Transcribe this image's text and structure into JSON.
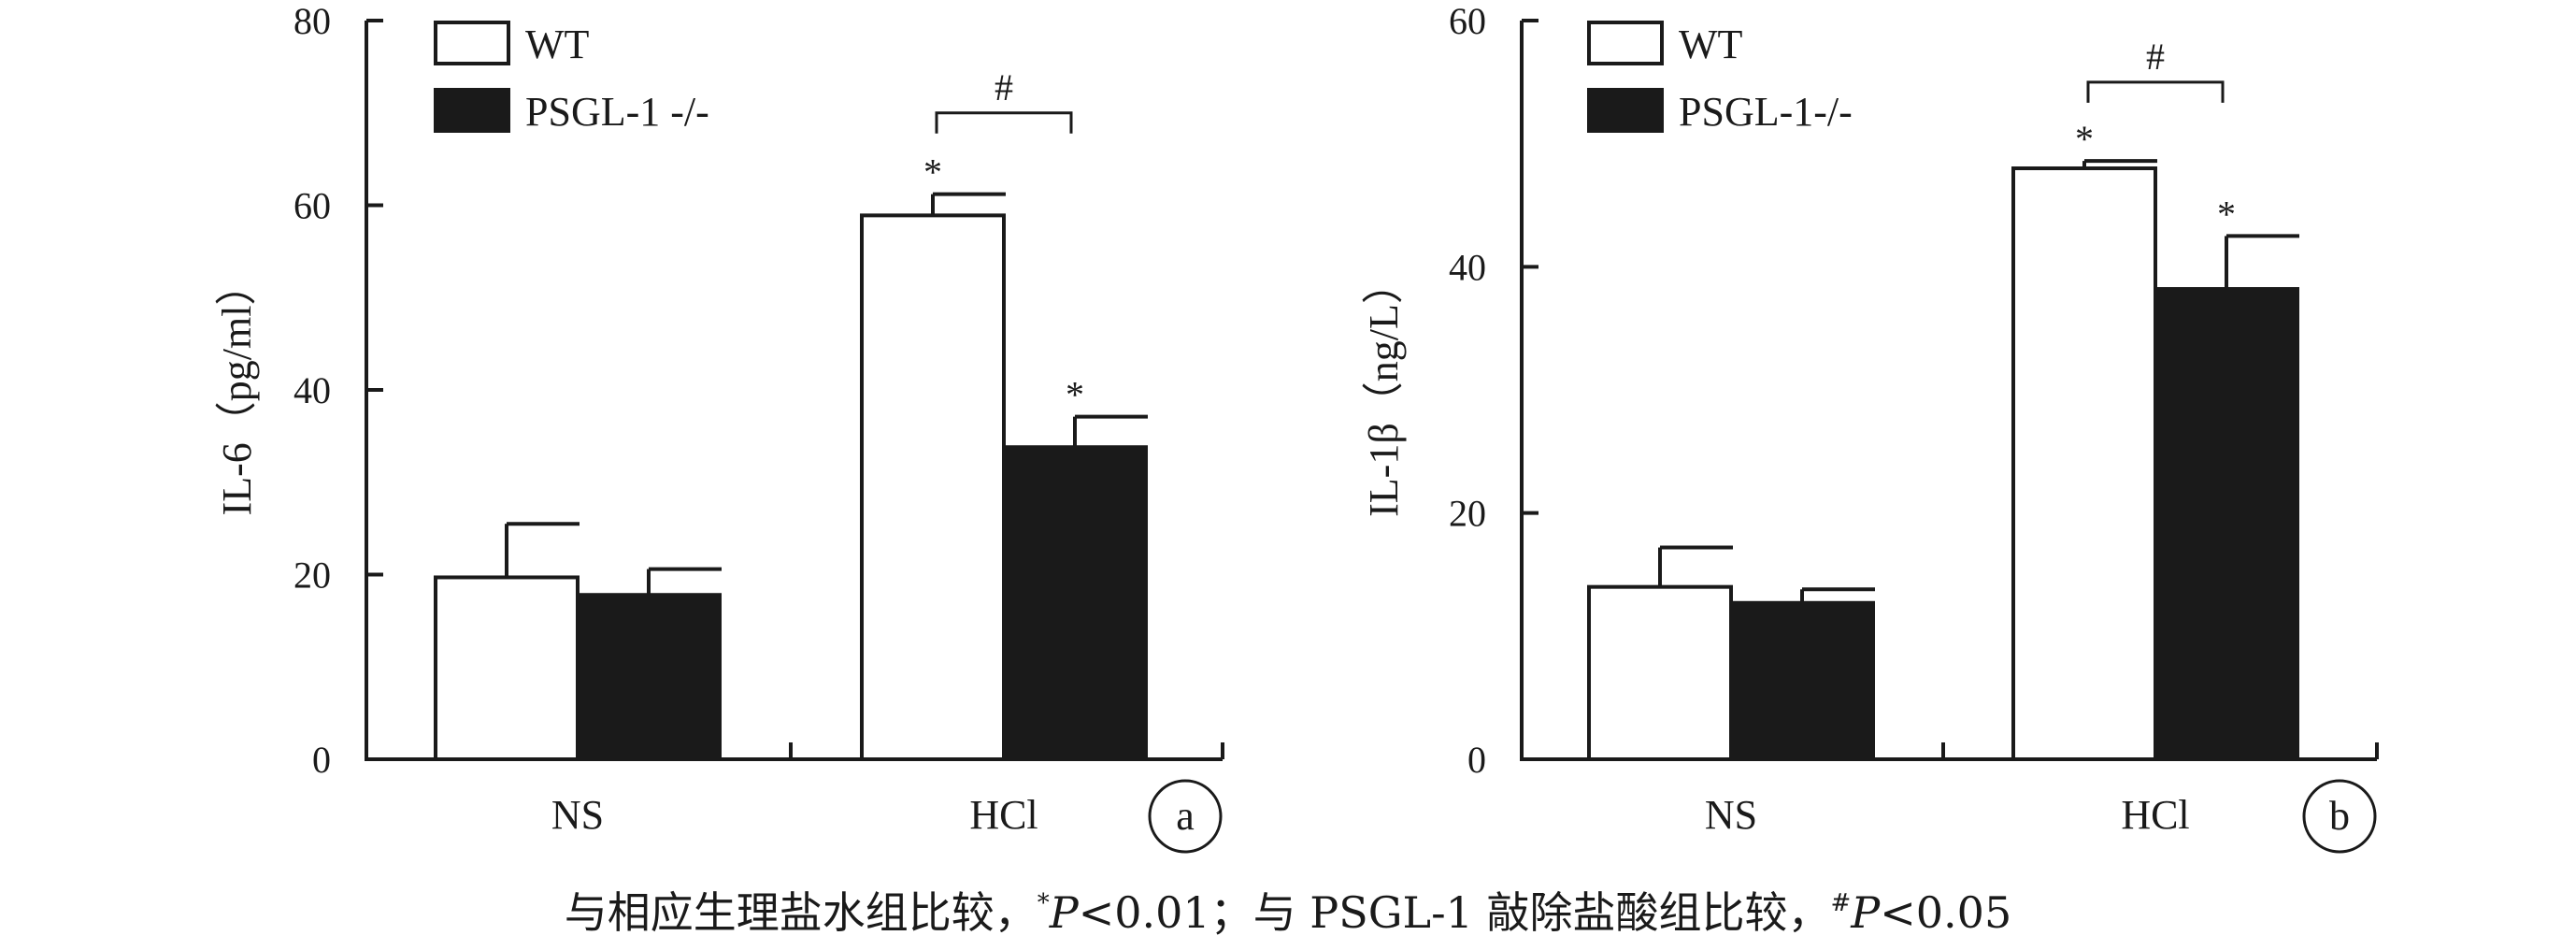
{
  "chart_data": [
    {
      "type": "bar",
      "panel_label": "a",
      "ylabel": "IL-6（pg/ml）",
      "ylim": [
        0,
        80
      ],
      "yticks": [
        "0",
        "20",
        "40",
        "60",
        "80"
      ],
      "categories": [
        "NS",
        "HCl"
      ],
      "series": [
        {
          "name": "WT",
          "color": "#ffffff",
          "values": [
            19.7,
            58.9
          ],
          "errors": [
            5.8,
            2.3
          ]
        },
        {
          "name": "PSGL-1 -/-",
          "color": "#1a1a1a",
          "values": [
            17.8,
            33.8
          ],
          "errors": [
            2.8,
            3.3
          ]
        }
      ],
      "annotations": {
        "star": "*",
        "hash": "#",
        "stars_on": [
          {
            "category": 1,
            "series": 0
          },
          {
            "category": 1,
            "series": 1
          }
        ],
        "hash_between": {
          "category": 1,
          "series": [
            0,
            1
          ],
          "y": 70
        }
      },
      "legend": "top-left"
    },
    {
      "type": "bar",
      "panel_label": "b",
      "ylabel": "IL-1β（ng/L）",
      "ylim": [
        0,
        60
      ],
      "yticks": [
        "0",
        "20",
        "40",
        "60"
      ],
      "categories": [
        "NS",
        "HCl"
      ],
      "series": [
        {
          "name": "WT",
          "color": "#ffffff",
          "values": [
            14.0,
            48.0
          ],
          "errors": [
            3.2,
            0.6
          ]
        },
        {
          "name": "PSGL-1-/-",
          "color": "#1a1a1a",
          "values": [
            12.7,
            38.2
          ],
          "errors": [
            1.1,
            4.3
          ]
        }
      ],
      "annotations": {
        "star": "*",
        "hash": "#",
        "stars_on": [
          {
            "category": 1,
            "series": 0
          },
          {
            "category": 1,
            "series": 1
          }
        ],
        "hash_between": {
          "category": 1,
          "series": [
            0,
            1
          ],
          "y": 55
        }
      },
      "legend": "top-left"
    }
  ],
  "caption": {
    "part1": "与相应生理盐水组比较，",
    "sup1": "*",
    "p1_italic": "P",
    "p1_rest": "<0.01；与 PSGL-1 敲除盐酸组比较，",
    "sup2": "#",
    "p2_italic": "P",
    "p2_rest": "<0.05"
  }
}
